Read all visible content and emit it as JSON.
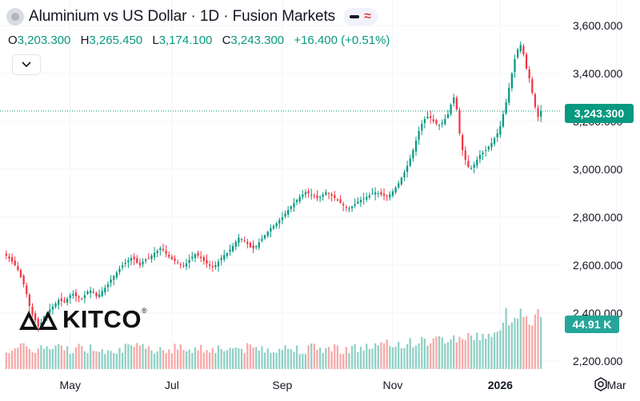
{
  "header": {
    "title": "Aluminium vs US Dollar · 1D · Fusion Markets",
    "ohlc": {
      "o_label": "O",
      "o_value": "3,203.300",
      "h_label": "H",
      "h_value": "3,265.450",
      "l_label": "L",
      "l_value": "3,174.100",
      "c_label": "C",
      "c_value": "3,243.300",
      "change": "+16.400 (+0.51%)"
    }
  },
  "logo": {
    "text": "KITCO",
    "reg": "®"
  },
  "price_label": "3,243.300",
  "volume_label": "44.91 K",
  "colors": {
    "up": "#089981",
    "down": "#f23645",
    "vol_up": "#8fd0c4",
    "vol_down": "#f7a9a7"
  },
  "chart_data": {
    "type": "candlestick",
    "title": "Aluminium vs US Dollar · 1D · Fusion Markets",
    "y_ticks": [
      "3,600.000",
      "3,400.000",
      "3,200.000",
      "3,000.000",
      "2,800.000",
      "2,600.000",
      "2,400.000",
      "2,200.000"
    ],
    "y_tick_values": [
      3600,
      3400,
      3200,
      3000,
      2800,
      2600,
      2400,
      2200
    ],
    "x_ticks": [
      "May",
      "Jul",
      "Sep",
      "Nov",
      "2026",
      "Mar"
    ],
    "x_tick_index": [
      22,
      57,
      95,
      133,
      170,
      210
    ],
    "ylim": [
      2200,
      3600
    ],
    "last_close": 3243.3,
    "series": [
      {
        "name": "close",
        "values": [
          2640,
          2628,
          2615,
          2600,
          2580,
          2550,
          2520,
          2480,
          2430,
          2395,
          2370,
          2345,
          2360,
          2385,
          2400,
          2415,
          2428,
          2440,
          2455,
          2450,
          2445,
          2460,
          2475,
          2480,
          2470,
          2465,
          2460,
          2475,
          2490,
          2495,
          2485,
          2470,
          2478,
          2492,
          2505,
          2520,
          2540,
          2555,
          2570,
          2585,
          2600,
          2610,
          2620,
          2630,
          2625,
          2610,
          2600,
          2615,
          2625,
          2630,
          2640,
          2652,
          2660,
          2670,
          2662,
          2648,
          2635,
          2625,
          2618,
          2612,
          2605,
          2598,
          2608,
          2622,
          2635,
          2645,
          2640,
          2630,
          2618,
          2606,
          2598,
          2592,
          2600,
          2615,
          2630,
          2642,
          2650,
          2665,
          2680,
          2698,
          2715,
          2710,
          2700,
          2688,
          2675,
          2670,
          2680,
          2695,
          2710,
          2725,
          2740,
          2755,
          2765,
          2775,
          2788,
          2800,
          2815,
          2830,
          2845,
          2860,
          2872,
          2885,
          2895,
          2905,
          2900,
          2895,
          2888,
          2880,
          2885,
          2895,
          2905,
          2900,
          2890,
          2880,
          2870,
          2860,
          2850,
          2840,
          2838,
          2845,
          2855,
          2865,
          2872,
          2878,
          2885,
          2892,
          2898,
          2904,
          2900,
          2895,
          2890,
          2888,
          2895,
          2908,
          2924,
          2942,
          2965,
          2988,
          3015,
          3045,
          3080,
          3120,
          3160,
          3190,
          3210,
          3220,
          3215,
          3200,
          3190,
          3185,
          3195,
          3210,
          3230,
          3270,
          3300,
          3250,
          3150,
          3080,
          3040,
          3010,
          3005,
          3020,
          3040,
          3060,
          3070,
          3080,
          3095,
          3110,
          3130,
          3150,
          3180,
          3230,
          3280,
          3340,
          3400,
          3460,
          3500,
          3520,
          3480,
          3420,
          3380,
          3320,
          3260,
          3220,
          3243.3
        ]
      },
      {
        "name": "volume",
        "values": []
      }
    ]
  }
}
